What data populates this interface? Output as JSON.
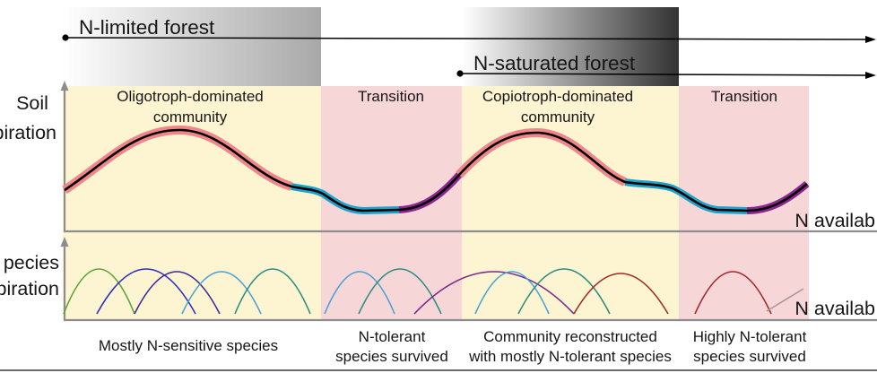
{
  "forest_states": [
    {
      "label": "N-limited forest"
    },
    {
      "label": "N-saturated forest"
    }
  ],
  "soil_panel": {
    "y_label": [
      "Soil",
      "piration"
    ],
    "x_label": "N availab"
  },
  "species_panel": {
    "y_label": [
      "pecies",
      "piration"
    ],
    "x_label": "N availab"
  },
  "phases": [
    {
      "title": [
        "Oligotroph-dominated",
        "community"
      ],
      "caption": [
        "Mostly N-sensitive species"
      ],
      "color": "#fdf4d2"
    },
    {
      "title": [
        "Transition"
      ],
      "caption": [
        "N-tolerant",
        "species survived"
      ],
      "color": "#f6d6d7"
    },
    {
      "title": [
        "Copiotroph-dominated",
        "community"
      ],
      "caption": [
        "Community reconstructed",
        "with mostly N-tolerant species"
      ],
      "color": "#fdf4d2"
    },
    {
      "title": [
        "Transition"
      ],
      "caption": [
        "Highly N-tolerant",
        "species survived"
      ],
      "color": "#f6d6d7"
    }
  ],
  "colors": {
    "band_fade": "#ffffff",
    "n_limited_band": "#a8a8a8",
    "n_saturated_band": "#333333",
    "curve_dominated": "#f0868a",
    "curve_transition": "#1ca3cc",
    "curve_tolerant": "#8b2690"
  },
  "species_curve_colors": [
    "#5aa537",
    "#2e2ec0",
    "#3b2b93",
    "#4aa3d5",
    "#2d8d80",
    "#4aa3d5",
    "#2d8d80",
    "#7a2a8c",
    "#4aa3d5",
    "#2d8d80",
    "#a3282d",
    "#a3282d",
    "#a8989d"
  ]
}
